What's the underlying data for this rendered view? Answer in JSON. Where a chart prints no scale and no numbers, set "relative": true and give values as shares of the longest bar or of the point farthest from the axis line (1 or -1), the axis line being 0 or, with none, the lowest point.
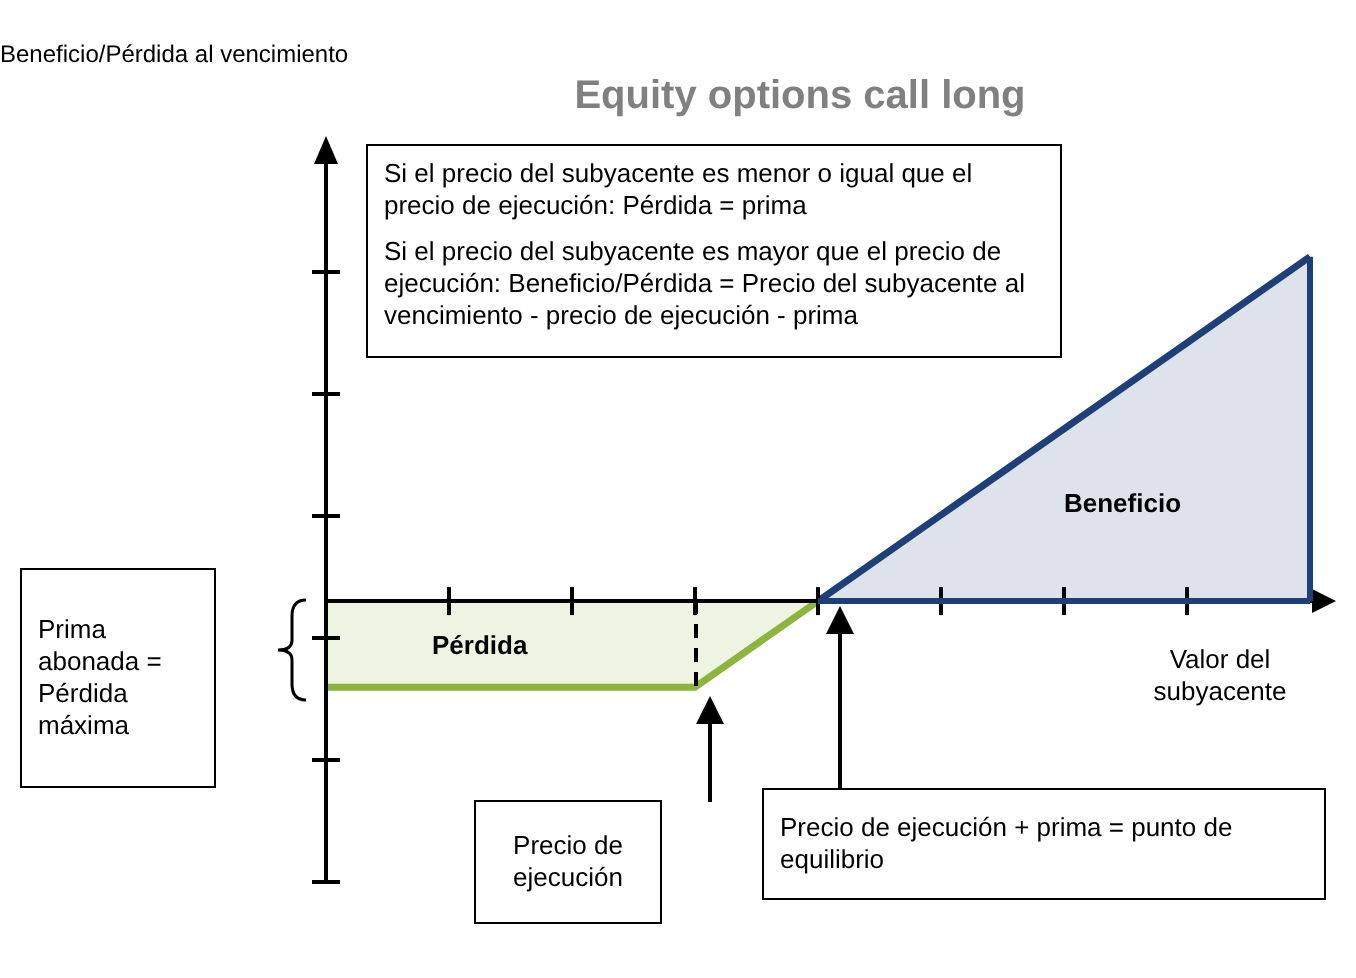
{
  "chart_data": {
    "type": "area",
    "title": "Equity options call long",
    "xlabel": "Valor del subyacente",
    "relative": true,
    "categories": [
      null,
      null,
      null,
      null,
      null,
      null,
      null,
      null,
      null
    ],
    "series": [
      {
        "type": "area",
        "color": "#8db43e",
        "values": [
          -0.25,
          -0.25,
          -0.25,
          -0.25,
          0,
          null,
          null,
          null,
          null
        ]
      },
      {
        "type": "area",
        "color": "#1f3f78",
        "values": [
          null,
          null,
          null,
          null,
          0,
          0.25,
          0.5,
          0.75,
          1
        ]
      }
    ],
    "annotations": [
      "Si el precio del subyacente es menor o igual que el precio de ejecución: Pérdida = prima",
      "Si el precio del subyacente es mayor que el precio de ejecución: Beneficio/Pérdida = Precio del subyacente al vencimiento - precio de ejecución - prima",
      "Beneficio",
      "Pérdida",
      "Prima abonada = Pérdida máxima",
      "Precio de ejecución",
      "Precio de ejecución + prima = punto de equilibrio",
      "Beneficio/Pérdida al vencimiento"
    ]
  }
}
